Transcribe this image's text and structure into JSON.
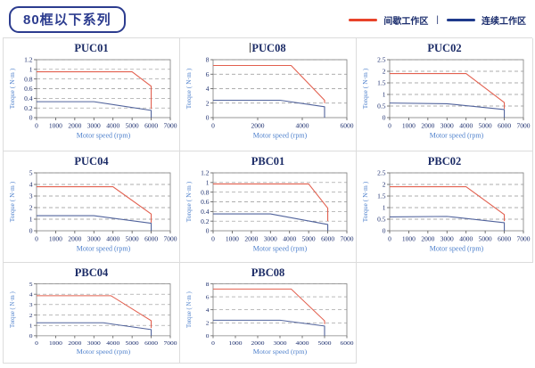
{
  "header": {
    "title": "80框以下系列",
    "legend_separator": "|",
    "legend": [
      {
        "label": "间歇工作区",
        "color": "#e8432a"
      },
      {
        "label": "连续工作区",
        "color": "#1f3a8c"
      }
    ]
  },
  "chart_defaults": {
    "xlabel": "Motor speed (rpm)",
    "ylabel": "Torque ( N·m )",
    "grid": "horizontal-dashed",
    "legend_position": "page-top-right",
    "curve_colors": {
      "intermittent": "#e2604f",
      "continuous": "#51639c"
    }
  },
  "chart_data": [
    {
      "type": "line",
      "title": "PUC01",
      "xlabel": "Motor speed (rpm)",
      "ylabel": "Torque ( N·m )",
      "xlim": [
        0,
        7000
      ],
      "ylim": [
        0,
        1.2
      ],
      "xticks": [
        0,
        1000,
        2000,
        3000,
        4000,
        5000,
        6000,
        7000
      ],
      "yticks": [
        0,
        0.2,
        0.4,
        0.6,
        0.8,
        1,
        1.2
      ],
      "series": [
        {
          "name": "间歇工作区",
          "color": "#e2604f",
          "points": [
            [
              0,
              0.95
            ],
            [
              5000,
              0.95
            ],
            [
              6000,
              0.65
            ],
            [
              6000,
              0.18
            ]
          ]
        },
        {
          "name": "连续工作区",
          "color": "#51639c",
          "points": [
            [
              0,
              0.33
            ],
            [
              3000,
              0.33
            ],
            [
              6000,
              0.15
            ],
            [
              6000,
              0
            ]
          ]
        }
      ]
    },
    {
      "type": "line",
      "title": "PUC08",
      "title_caret": "|",
      "xlabel": "Motor speed (rpm)",
      "ylabel": "Torque ( N·m )",
      "xlim": [
        0,
        6000
      ],
      "ylim": [
        0,
        8
      ],
      "xticks": [
        0,
        2000,
        4000,
        6000
      ],
      "yticks": [
        0,
        2,
        4,
        6,
        8
      ],
      "series": [
        {
          "name": "间歇工作区",
          "color": "#e2604f",
          "points": [
            [
              0,
              7.2
            ],
            [
              3500,
              7.2
            ],
            [
              5000,
              2.4
            ],
            [
              5000,
              2.0
            ]
          ]
        },
        {
          "name": "连续工作区",
          "color": "#51639c",
          "points": [
            [
              0,
              2.4
            ],
            [
              3000,
              2.4
            ],
            [
              5000,
              1.5
            ],
            [
              5000,
              0
            ]
          ]
        }
      ]
    },
    {
      "type": "line",
      "title": "PUC02",
      "xlabel": "Motor speed (rpm)",
      "ylabel": "Torque ( N·m )",
      "xlim": [
        0,
        7000
      ],
      "ylim": [
        0,
        2.5
      ],
      "xticks": [
        0,
        1000,
        2000,
        3000,
        4000,
        5000,
        6000,
        7000
      ],
      "yticks": [
        0,
        0.5,
        1,
        1.5,
        2,
        2.5
      ],
      "series": [
        {
          "name": "间歇工作区",
          "color": "#e2604f",
          "points": [
            [
              0,
              1.9
            ],
            [
              4000,
              1.9
            ],
            [
              6000,
              0.65
            ],
            [
              6000,
              0.38
            ]
          ]
        },
        {
          "name": "连续工作区",
          "color": "#51639c",
          "points": [
            [
              0,
              0.63
            ],
            [
              3000,
              0.6
            ],
            [
              6000,
              0.35
            ],
            [
              6000,
              0
            ]
          ]
        }
      ]
    },
    {
      "type": "line",
      "title": "PUC04",
      "xlabel": "Motor speed (rpm)",
      "ylabel": "Torque ( N·m )",
      "xlim": [
        0,
        7000
      ],
      "ylim": [
        0,
        5
      ],
      "xticks": [
        0,
        1000,
        2000,
        3000,
        4000,
        5000,
        6000,
        7000
      ],
      "yticks": [
        0,
        1,
        2,
        3,
        4,
        5
      ],
      "series": [
        {
          "name": "间歇工作区",
          "color": "#e2604f",
          "points": [
            [
              0,
              3.8
            ],
            [
              4000,
              3.8
            ],
            [
              6000,
              1.45
            ],
            [
              6000,
              0.7
            ]
          ]
        },
        {
          "name": "连续工作区",
          "color": "#51639c",
          "points": [
            [
              0,
              1.3
            ],
            [
              3000,
              1.3
            ],
            [
              6000,
              0.65
            ],
            [
              6000,
              0
            ]
          ]
        }
      ]
    },
    {
      "type": "line",
      "title": "PBC01",
      "xlabel": "Motor speed (rpm)",
      "ylabel": "Torque ( N·m )",
      "xlim": [
        0,
        7000
      ],
      "ylim": [
        0,
        1.2
      ],
      "xticks": [
        0,
        1000,
        2000,
        3000,
        4000,
        5000,
        6000,
        7000
      ],
      "yticks": [
        0,
        0.2,
        0.4,
        0.6,
        0.8,
        1,
        1.2
      ],
      "series": [
        {
          "name": "间歇工作区",
          "color": "#e2604f",
          "points": [
            [
              0,
              0.97
            ],
            [
              5000,
              0.97
            ],
            [
              6000,
              0.47
            ],
            [
              6000,
              0.2
            ]
          ]
        },
        {
          "name": "连续工作区",
          "color": "#51639c",
          "points": [
            [
              0,
              0.35
            ],
            [
              3000,
              0.35
            ],
            [
              6000,
              0.13
            ],
            [
              6000,
              0
            ]
          ]
        }
      ]
    },
    {
      "type": "line",
      "title": "PBC02",
      "xlabel": "Motor speed (rpm)",
      "ylabel": "Torque ( N·m )",
      "xlim": [
        0,
        7000
      ],
      "ylim": [
        0,
        2.5
      ],
      "xticks": [
        0,
        1000,
        2000,
        3000,
        4000,
        5000,
        6000,
        7000
      ],
      "yticks": [
        0,
        0.5,
        1,
        1.5,
        2,
        2.5
      ],
      "series": [
        {
          "name": "间歇工作区",
          "color": "#e2604f",
          "points": [
            [
              0,
              1.9
            ],
            [
              4000,
              1.9
            ],
            [
              6000,
              0.7
            ],
            [
              6000,
              0.42
            ]
          ]
        },
        {
          "name": "连续工作区",
          "color": "#51639c",
          "points": [
            [
              0,
              0.6
            ],
            [
              3000,
              0.62
            ],
            [
              6000,
              0.35
            ],
            [
              6000,
              0
            ]
          ]
        }
      ]
    },
    {
      "type": "line",
      "title": "PBC04",
      "xlabel": "Motor speed (rpm)",
      "ylabel": "Torque ( N·m )",
      "xlim": [
        0,
        7000
      ],
      "ylim": [
        0,
        5
      ],
      "xticks": [
        0,
        1000,
        2000,
        3000,
        4000,
        5000,
        6000,
        7000
      ],
      "yticks": [
        0,
        1,
        2,
        3,
        4,
        5
      ],
      "series": [
        {
          "name": "间歇工作区",
          "color": "#e2604f",
          "points": [
            [
              0,
              3.85
            ],
            [
              3900,
              3.85
            ],
            [
              6000,
              1.45
            ],
            [
              6000,
              0.75
            ]
          ]
        },
        {
          "name": "连续工作区",
          "color": "#51639c",
          "points": [
            [
              0,
              1.25
            ],
            [
              3500,
              1.25
            ],
            [
              6000,
              0.6
            ],
            [
              6000,
              0
            ]
          ]
        }
      ]
    },
    {
      "type": "line",
      "title": "PBC08",
      "xlabel": "Motor speed (rpm)",
      "ylabel": "Torque ( N·m )",
      "xlim": [
        0,
        6000
      ],
      "ylim": [
        0,
        8
      ],
      "xticks": [
        0,
        1000,
        2000,
        3000,
        4000,
        5000,
        6000
      ],
      "yticks": [
        0,
        2,
        4,
        6,
        8
      ],
      "series": [
        {
          "name": "间歇工作区",
          "color": "#e2604f",
          "points": [
            [
              0,
              7.2
            ],
            [
              3500,
              7.2
            ],
            [
              5000,
              2.3
            ],
            [
              5000,
              1.8
            ]
          ]
        },
        {
          "name": "连续工作区",
          "color": "#51639c",
          "points": [
            [
              0,
              2.4
            ],
            [
              3000,
              2.4
            ],
            [
              5000,
              1.5
            ],
            [
              5000,
              0
            ]
          ]
        }
      ]
    }
  ]
}
